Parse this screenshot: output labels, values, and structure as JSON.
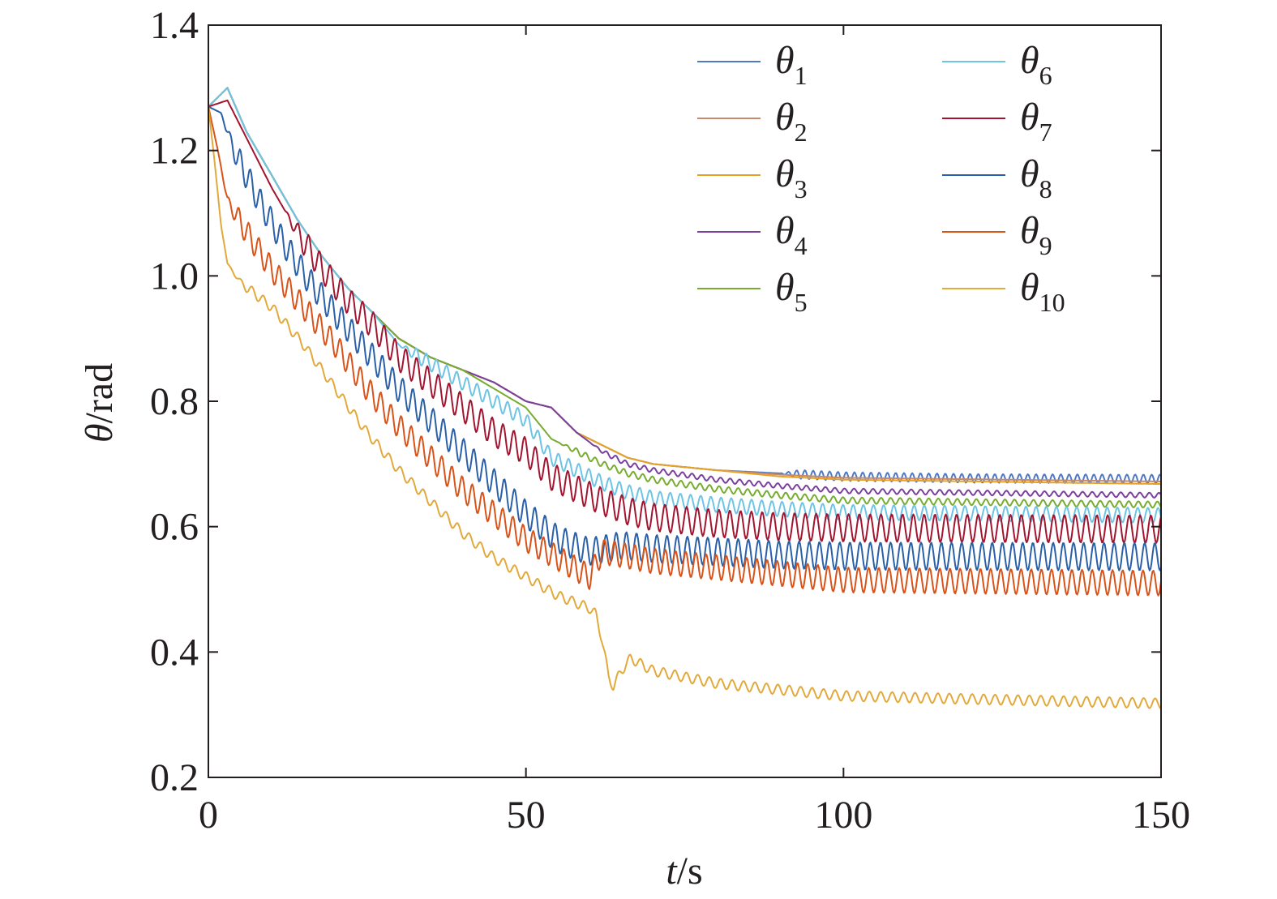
{
  "chart_data": {
    "type": "line",
    "xlabel": {
      "var": "t",
      "unit": "/s"
    },
    "ylabel": {
      "var": "θ",
      "unit": "/rad"
    },
    "xlim": [
      0,
      150
    ],
    "ylim": [
      0.2,
      1.4
    ],
    "xticks": [
      "0",
      "50",
      "100",
      "150"
    ],
    "yticks": [
      "0.2",
      "0.4",
      "0.6",
      "0.8",
      "1.0",
      "1.2",
      "1.4"
    ],
    "grid": false,
    "legend_position": "top-right",
    "series": [
      {
        "name": "θ",
        "sub": "1",
        "color": "#4e79c4",
        "points": [
          [
            0,
            1.27
          ],
          [
            3,
            1.3
          ],
          [
            6,
            1.23
          ],
          [
            10,
            1.16
          ],
          [
            14,
            1.09
          ],
          [
            18,
            1.03
          ],
          [
            22,
            0.98
          ],
          [
            26,
            0.94
          ],
          [
            30,
            0.9
          ],
          [
            35,
            0.87
          ],
          [
            40,
            0.85
          ],
          [
            45,
            0.83
          ],
          [
            50,
            0.8
          ],
          [
            54,
            0.79
          ],
          [
            58,
            0.75
          ],
          [
            62,
            0.73
          ],
          [
            66,
            0.71
          ],
          [
            70,
            0.7
          ],
          [
            80,
            0.69
          ],
          [
            90,
            0.685
          ],
          [
            100,
            0.68
          ],
          [
            120,
            0.677
          ],
          [
            150,
            0.676
          ]
        ],
        "osc_start": 90,
        "osc_amp": 0.007,
        "osc_period": 1.3
      },
      {
        "name": "θ",
        "sub": "2",
        "color": "#c98a6b",
        "points": [
          [
            0,
            1.27
          ],
          [
            3,
            1.3
          ],
          [
            6,
            1.23
          ],
          [
            10,
            1.16
          ],
          [
            14,
            1.09
          ],
          [
            18,
            1.03
          ],
          [
            22,
            0.98
          ],
          [
            26,
            0.94
          ],
          [
            30,
            0.9
          ],
          [
            35,
            0.87
          ],
          [
            40,
            0.85
          ],
          [
            45,
            0.83
          ],
          [
            50,
            0.8
          ],
          [
            54,
            0.79
          ],
          [
            58,
            0.75
          ],
          [
            62,
            0.73
          ],
          [
            66,
            0.71
          ],
          [
            70,
            0.7
          ],
          [
            80,
            0.69
          ],
          [
            90,
            0.683
          ],
          [
            100,
            0.678
          ],
          [
            150,
            0.672
          ]
        ]
      },
      {
        "name": "θ",
        "sub": "3",
        "color": "#e6a227",
        "points": [
          [
            0,
            1.27
          ],
          [
            3,
            1.3
          ],
          [
            6,
            1.23
          ],
          [
            10,
            1.16
          ],
          [
            14,
            1.09
          ],
          [
            18,
            1.03
          ],
          [
            22,
            0.98
          ],
          [
            26,
            0.94
          ],
          [
            30,
            0.9
          ],
          [
            35,
            0.87
          ],
          [
            40,
            0.85
          ],
          [
            45,
            0.83
          ],
          [
            50,
            0.8
          ],
          [
            54,
            0.79
          ],
          [
            58,
            0.75
          ],
          [
            62,
            0.73
          ],
          [
            66,
            0.71
          ],
          [
            70,
            0.7
          ],
          [
            80,
            0.69
          ],
          [
            90,
            0.68
          ],
          [
            100,
            0.675
          ],
          [
            150,
            0.668
          ]
        ]
      },
      {
        "name": "θ",
        "sub": "4",
        "color": "#7b3f9e",
        "points": [
          [
            0,
            1.27
          ],
          [
            3,
            1.3
          ],
          [
            6,
            1.23
          ],
          [
            10,
            1.16
          ],
          [
            14,
            1.09
          ],
          [
            18,
            1.03
          ],
          [
            22,
            0.98
          ],
          [
            26,
            0.94
          ],
          [
            30,
            0.9
          ],
          [
            35,
            0.87
          ],
          [
            40,
            0.85
          ],
          [
            45,
            0.83
          ],
          [
            50,
            0.8
          ],
          [
            54,
            0.79
          ],
          [
            58,
            0.75
          ],
          [
            62,
            0.72
          ],
          [
            66,
            0.7
          ],
          [
            70,
            0.69
          ],
          [
            80,
            0.675
          ],
          [
            90,
            0.665
          ],
          [
            100,
            0.657
          ],
          [
            150,
            0.65
          ]
        ],
        "osc_start": 60,
        "osc_amp": 0.004,
        "osc_period": 1.5
      },
      {
        "name": "θ",
        "sub": "5",
        "color": "#77ac30",
        "points": [
          [
            0,
            1.27
          ],
          [
            3,
            1.3
          ],
          [
            6,
            1.23
          ],
          [
            10,
            1.16
          ],
          [
            14,
            1.09
          ],
          [
            18,
            1.03
          ],
          [
            22,
            0.98
          ],
          [
            26,
            0.94
          ],
          [
            30,
            0.9
          ],
          [
            35,
            0.87
          ],
          [
            40,
            0.85
          ],
          [
            45,
            0.82
          ],
          [
            50,
            0.79
          ],
          [
            54,
            0.74
          ],
          [
            58,
            0.72
          ],
          [
            62,
            0.7
          ],
          [
            66,
            0.685
          ],
          [
            70,
            0.675
          ],
          [
            80,
            0.66
          ],
          [
            90,
            0.65
          ],
          [
            100,
            0.642
          ],
          [
            150,
            0.635
          ]
        ],
        "osc_start": 55,
        "osc_amp": 0.005,
        "osc_period": 1.5
      },
      {
        "name": "θ",
        "sub": "6",
        "color": "#6ec4e4",
        "points": [
          [
            0,
            1.27
          ],
          [
            3,
            1.3
          ],
          [
            6,
            1.23
          ],
          [
            10,
            1.16
          ],
          [
            14,
            1.09
          ],
          [
            18,
            1.03
          ],
          [
            22,
            0.98
          ],
          [
            26,
            0.94
          ],
          [
            30,
            0.89
          ],
          [
            35,
            0.86
          ],
          [
            40,
            0.83
          ],
          [
            45,
            0.8
          ],
          [
            50,
            0.77
          ],
          [
            54,
            0.71
          ],
          [
            58,
            0.69
          ],
          [
            62,
            0.67
          ],
          [
            66,
            0.655
          ],
          [
            70,
            0.645
          ],
          [
            80,
            0.635
          ],
          [
            90,
            0.628
          ],
          [
            100,
            0.623
          ],
          [
            150,
            0.618
          ]
        ],
        "osc_start": 30,
        "osc_amp": 0.012,
        "osc_period": 1.6
      },
      {
        "name": "θ",
        "sub": "7",
        "color": "#a2142f",
        "points": [
          [
            0,
            1.27
          ],
          [
            3,
            1.28
          ],
          [
            6,
            1.22
          ],
          [
            10,
            1.14
          ],
          [
            14,
            1.07
          ],
          [
            18,
            1.01
          ],
          [
            22,
            0.96
          ],
          [
            26,
            0.92
          ],
          [
            30,
            0.87
          ],
          [
            35,
            0.83
          ],
          [
            40,
            0.79
          ],
          [
            45,
            0.75
          ],
          [
            50,
            0.72
          ],
          [
            54,
            0.68
          ],
          [
            58,
            0.66
          ],
          [
            62,
            0.64
          ],
          [
            66,
            0.625
          ],
          [
            70,
            0.615
          ],
          [
            80,
            0.605
          ],
          [
            90,
            0.6
          ],
          [
            100,
            0.598
          ],
          [
            150,
            0.596
          ]
        ],
        "osc_start": 12,
        "osc_amp": 0.022,
        "osc_period": 1.7
      },
      {
        "name": "θ",
        "sub": "8",
        "color": "#2a60a8",
        "points": [
          [
            0,
            1.27
          ],
          [
            2,
            1.26
          ],
          [
            4,
            1.2
          ],
          [
            8,
            1.12
          ],
          [
            12,
            1.05
          ],
          [
            16,
            0.99
          ],
          [
            20,
            0.94
          ],
          [
            25,
            0.88
          ],
          [
            30,
            0.82
          ],
          [
            35,
            0.77
          ],
          [
            40,
            0.72
          ],
          [
            45,
            0.67
          ],
          [
            50,
            0.62
          ],
          [
            55,
            0.58
          ],
          [
            60,
            0.56
          ],
          [
            65,
            0.57
          ],
          [
            70,
            0.565
          ],
          [
            80,
            0.56
          ],
          [
            90,
            0.555
          ],
          [
            100,
            0.553
          ],
          [
            150,
            0.552
          ]
        ],
        "osc_start": 2,
        "osc_amp": 0.022,
        "osc_period": 1.6
      },
      {
        "name": "θ",
        "sub": "9",
        "color": "#d95319",
        "points": [
          [
            0,
            1.27
          ],
          [
            1.5,
            1.2
          ],
          [
            3,
            1.12
          ],
          [
            6,
            1.07
          ],
          [
            10,
            1.01
          ],
          [
            15,
            0.95
          ],
          [
            20,
            0.89
          ],
          [
            25,
            0.82
          ],
          [
            30,
            0.76
          ],
          [
            35,
            0.71
          ],
          [
            40,
            0.66
          ],
          [
            45,
            0.62
          ],
          [
            50,
            0.58
          ],
          [
            55,
            0.55
          ],
          [
            60,
            0.52
          ],
          [
            62,
            0.56
          ],
          [
            65,
            0.555
          ],
          [
            70,
            0.545
          ],
          [
            80,
            0.535
          ],
          [
            90,
            0.525
          ],
          [
            100,
            0.515
          ],
          [
            150,
            0.51
          ]
        ],
        "osc_start": 2,
        "osc_amp": 0.02,
        "osc_period": 1.6
      },
      {
        "name": "θ",
        "sub": "10",
        "color": "#e2a93b",
        "points": [
          [
            0,
            1.27
          ],
          [
            1,
            1.18
          ],
          [
            2,
            1.08
          ],
          [
            3,
            1.02
          ],
          [
            5,
            0.99
          ],
          [
            10,
            0.95
          ],
          [
            15,
            0.89
          ],
          [
            20,
            0.82
          ],
          [
            25,
            0.75
          ],
          [
            30,
            0.69
          ],
          [
            35,
            0.64
          ],
          [
            40,
            0.59
          ],
          [
            45,
            0.55
          ],
          [
            50,
            0.52
          ],
          [
            55,
            0.49
          ],
          [
            60,
            0.47
          ],
          [
            61,
            0.46
          ],
          [
            62,
            0.42
          ],
          [
            63,
            0.36
          ],
          [
            63.8,
            0.345
          ],
          [
            65,
            0.37
          ],
          [
            66.5,
            0.39
          ],
          [
            70,
            0.37
          ],
          [
            80,
            0.35
          ],
          [
            90,
            0.34
          ],
          [
            100,
            0.33
          ],
          [
            120,
            0.325
          ],
          [
            150,
            0.318
          ]
        ],
        "osc_start": 3,
        "osc_amp": 0.008,
        "osc_period": 1.8
      }
    ]
  }
}
